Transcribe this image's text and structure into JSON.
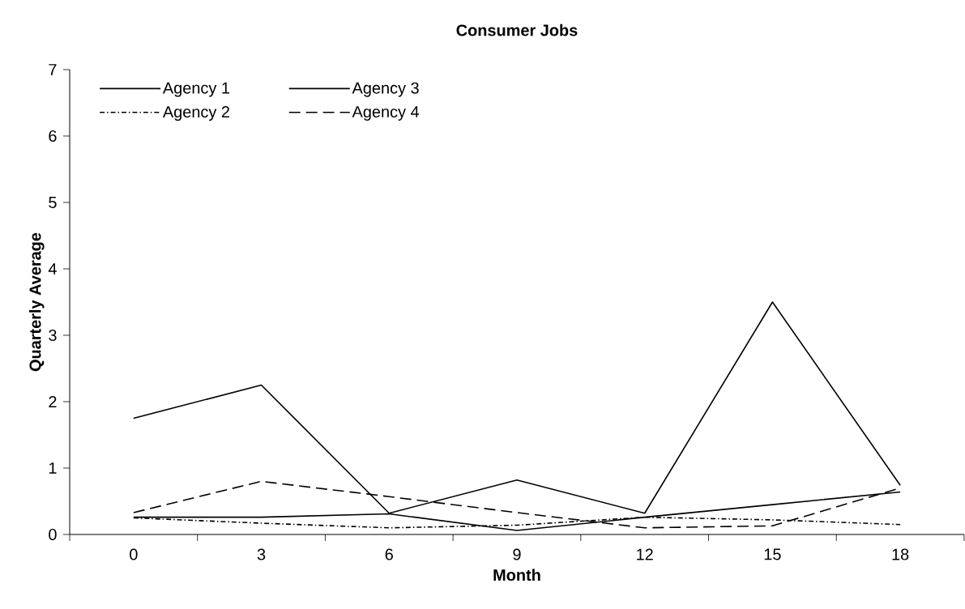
{
  "chart_data": {
    "type": "line",
    "title": "Consumer Jobs",
    "xlabel": "Month",
    "ylabel": "Quarterly Average",
    "categories": [
      "0",
      "3",
      "6",
      "9",
      "12",
      "15",
      "18"
    ],
    "series": [
      {
        "name": "Agency 1",
        "color": "#000000",
        "line_style": "solid",
        "values": [
          1.75,
          2.25,
          0.32,
          0.82,
          0.32,
          3.5,
          0.74
        ]
      },
      {
        "name": "Agency 2",
        "color": "#000000",
        "line_style": "dashdot",
        "values": [
          0.25,
          0.17,
          0.1,
          0.14,
          0.26,
          0.22,
          0.15
        ]
      },
      {
        "name": "Agency 3",
        "color": "#000000",
        "line_style": "solid",
        "values": [
          0.26,
          0.26,
          0.31,
          0.06,
          0.26,
          0.45,
          0.64
        ]
      },
      {
        "name": "Agency 4",
        "color": "#000000",
        "line_style": "dashed",
        "values": [
          0.33,
          0.8,
          0.57,
          0.33,
          0.1,
          0.13,
          0.7
        ]
      }
    ],
    "ylim": [
      0,
      7
    ],
    "yticks": [
      0,
      1,
      2,
      3,
      4,
      5,
      6,
      7
    ],
    "grid": false,
    "legend": "top left",
    "marker": "none"
  }
}
